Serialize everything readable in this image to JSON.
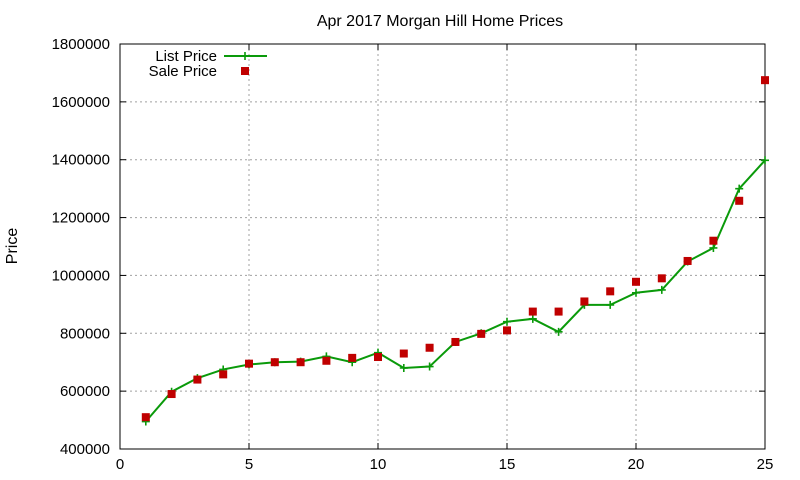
{
  "chart_data": {
    "type": "line",
    "title": "Apr 2017 Morgan Hill Home Prices",
    "xlabel": "",
    "ylabel": "Price",
    "xlim": [
      0,
      25
    ],
    "ylim": [
      400000,
      1800000
    ],
    "xticks": [
      "0",
      "5",
      "10",
      "15",
      "20",
      "25"
    ],
    "yticks": [
      "400000",
      "600000",
      "800000",
      "1000000",
      "1200000",
      "1400000",
      "1600000",
      "1800000"
    ],
    "grid": true,
    "legend_position": "top-left",
    "series": [
      {
        "name": "List Price",
        "style": "line+cross",
        "color": "#0a9a0a",
        "x": [
          1,
          2,
          3,
          4,
          5,
          6,
          7,
          8,
          9,
          10,
          11,
          12,
          13,
          14,
          15,
          16,
          17,
          18,
          19,
          20,
          21,
          22,
          23,
          24,
          25
        ],
        "y": [
          495000,
          598000,
          645000,
          675000,
          692000,
          700000,
          702000,
          720000,
          700000,
          733000,
          680000,
          685000,
          770000,
          800000,
          840000,
          850000,
          805000,
          898000,
          898000,
          940000,
          950000,
          1048000,
          1095000,
          1300000,
          1398000
        ]
      },
      {
        "name": "Sale Price",
        "style": "square",
        "color": "#c00000",
        "x": [
          1,
          2,
          3,
          4,
          5,
          6,
          7,
          8,
          9,
          10,
          11,
          12,
          13,
          14,
          15,
          16,
          17,
          18,
          19,
          20,
          21,
          22,
          23,
          24,
          25
        ],
        "y": [
          510000,
          590000,
          640000,
          658000,
          695000,
          700000,
          700000,
          705000,
          715000,
          718000,
          730000,
          750000,
          770000,
          798000,
          810000,
          875000,
          875000,
          910000,
          945000,
          978000,
          990000,
          1050000,
          1120000,
          1258000,
          1675000
        ]
      }
    ]
  }
}
